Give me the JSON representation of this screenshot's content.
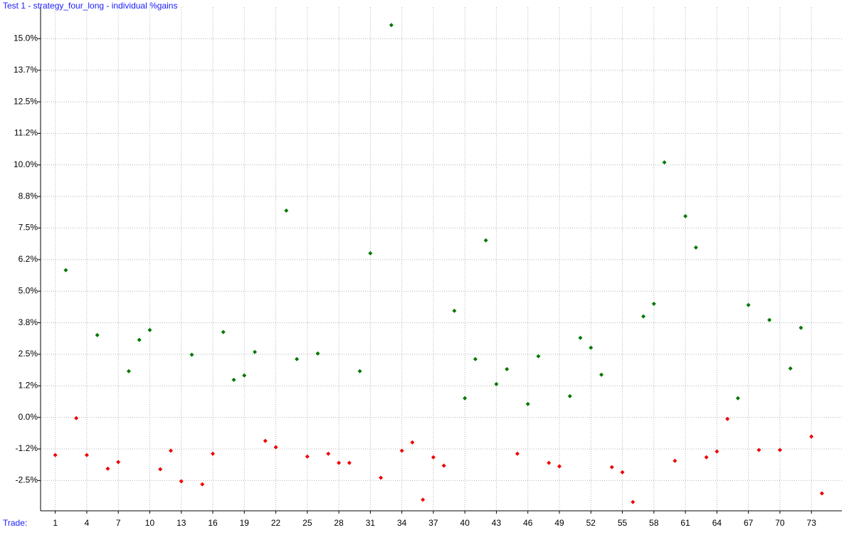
{
  "chart_data": {
    "type": "scatter",
    "title": "Test 1 - strategy_four_long - individual %gains",
    "x_label": "Trade:",
    "x": [
      1,
      2,
      3,
      4,
      5,
      6,
      7,
      8,
      9,
      10,
      11,
      12,
      13,
      14,
      15,
      16,
      17,
      18,
      19,
      20,
      21,
      22,
      23,
      24,
      25,
      26,
      27,
      28,
      29,
      30,
      31,
      32,
      33,
      34,
      35,
      36,
      37,
      38,
      39,
      40,
      41,
      42,
      43,
      44,
      45,
      46,
      47,
      48,
      49,
      50,
      51,
      52,
      53,
      54,
      55,
      56,
      57,
      58,
      59,
      60,
      61,
      62,
      63,
      64,
      65,
      66,
      67,
      68,
      69,
      70,
      71,
      72,
      73,
      74
    ],
    "values": [
      -1.49,
      5.83,
      -0.03,
      -1.49,
      3.26,
      -2.03,
      -1.77,
      1.83,
      3.07,
      3.46,
      -2.05,
      -1.32,
      -2.53,
      2.48,
      -2.65,
      -1.44,
      3.38,
      1.49,
      1.66,
      2.59,
      -0.93,
      -1.18,
      8.19,
      2.31,
      -1.55,
      2.53,
      -1.44,
      -1.8,
      -1.8,
      1.83,
      6.5,
      -2.39,
      15.54,
      -1.32,
      -0.99,
      -3.26,
      -1.58,
      -1.91,
      4.22,
      0.76,
      2.31,
      7.01,
      1.32,
      1.91,
      -1.44,
      0.53,
      2.42,
      -1.8,
      -1.94,
      0.84,
      3.15,
      2.76,
      1.69,
      -1.97,
      -2.17,
      -3.35,
      4.0,
      4.5,
      10.1,
      -1.72,
      7.97,
      6.73,
      -1.58,
      -1.35,
      -0.06,
      0.76,
      4.45,
      -1.29,
      3.86,
      -1.29,
      1.94,
      3.55,
      -0.76,
      -3.01
    ],
    "positive_color": "#007800",
    "negative_color": "#ee0000",
    "xlim": [
      -0.4,
      75.9
    ],
    "xticks": [
      1,
      4,
      7,
      10,
      13,
      16,
      19,
      22,
      25,
      28,
      31,
      34,
      37,
      40,
      43,
      46,
      49,
      52,
      55,
      58,
      61,
      64,
      67,
      70,
      73
    ],
    "ylim": [
      -3.7,
      16.25
    ],
    "yticks": [
      {
        "value": -2.5,
        "label": "-2.5%"
      },
      {
        "value": -1.25,
        "label": "-1.2%"
      },
      {
        "value": 0,
        "label": "0.0%"
      },
      {
        "value": 1.25,
        "label": "1.2%"
      },
      {
        "value": 2.5,
        "label": "2.5%"
      },
      {
        "value": 3.75,
        "label": "3.8%"
      },
      {
        "value": 5,
        "label": "5.0%"
      },
      {
        "value": 6.25,
        "label": "6.2%"
      },
      {
        "value": 7.5,
        "label": "7.5%"
      },
      {
        "value": 8.75,
        "label": "8.8%"
      },
      {
        "value": 10,
        "label": "10.0%"
      },
      {
        "value": 11.25,
        "label": "11.2%"
      },
      {
        "value": 12.5,
        "label": "12.5%"
      },
      {
        "value": 13.75,
        "label": "13.7%"
      },
      {
        "value": 15,
        "label": "15.0%"
      }
    ],
    "grid": true
  }
}
